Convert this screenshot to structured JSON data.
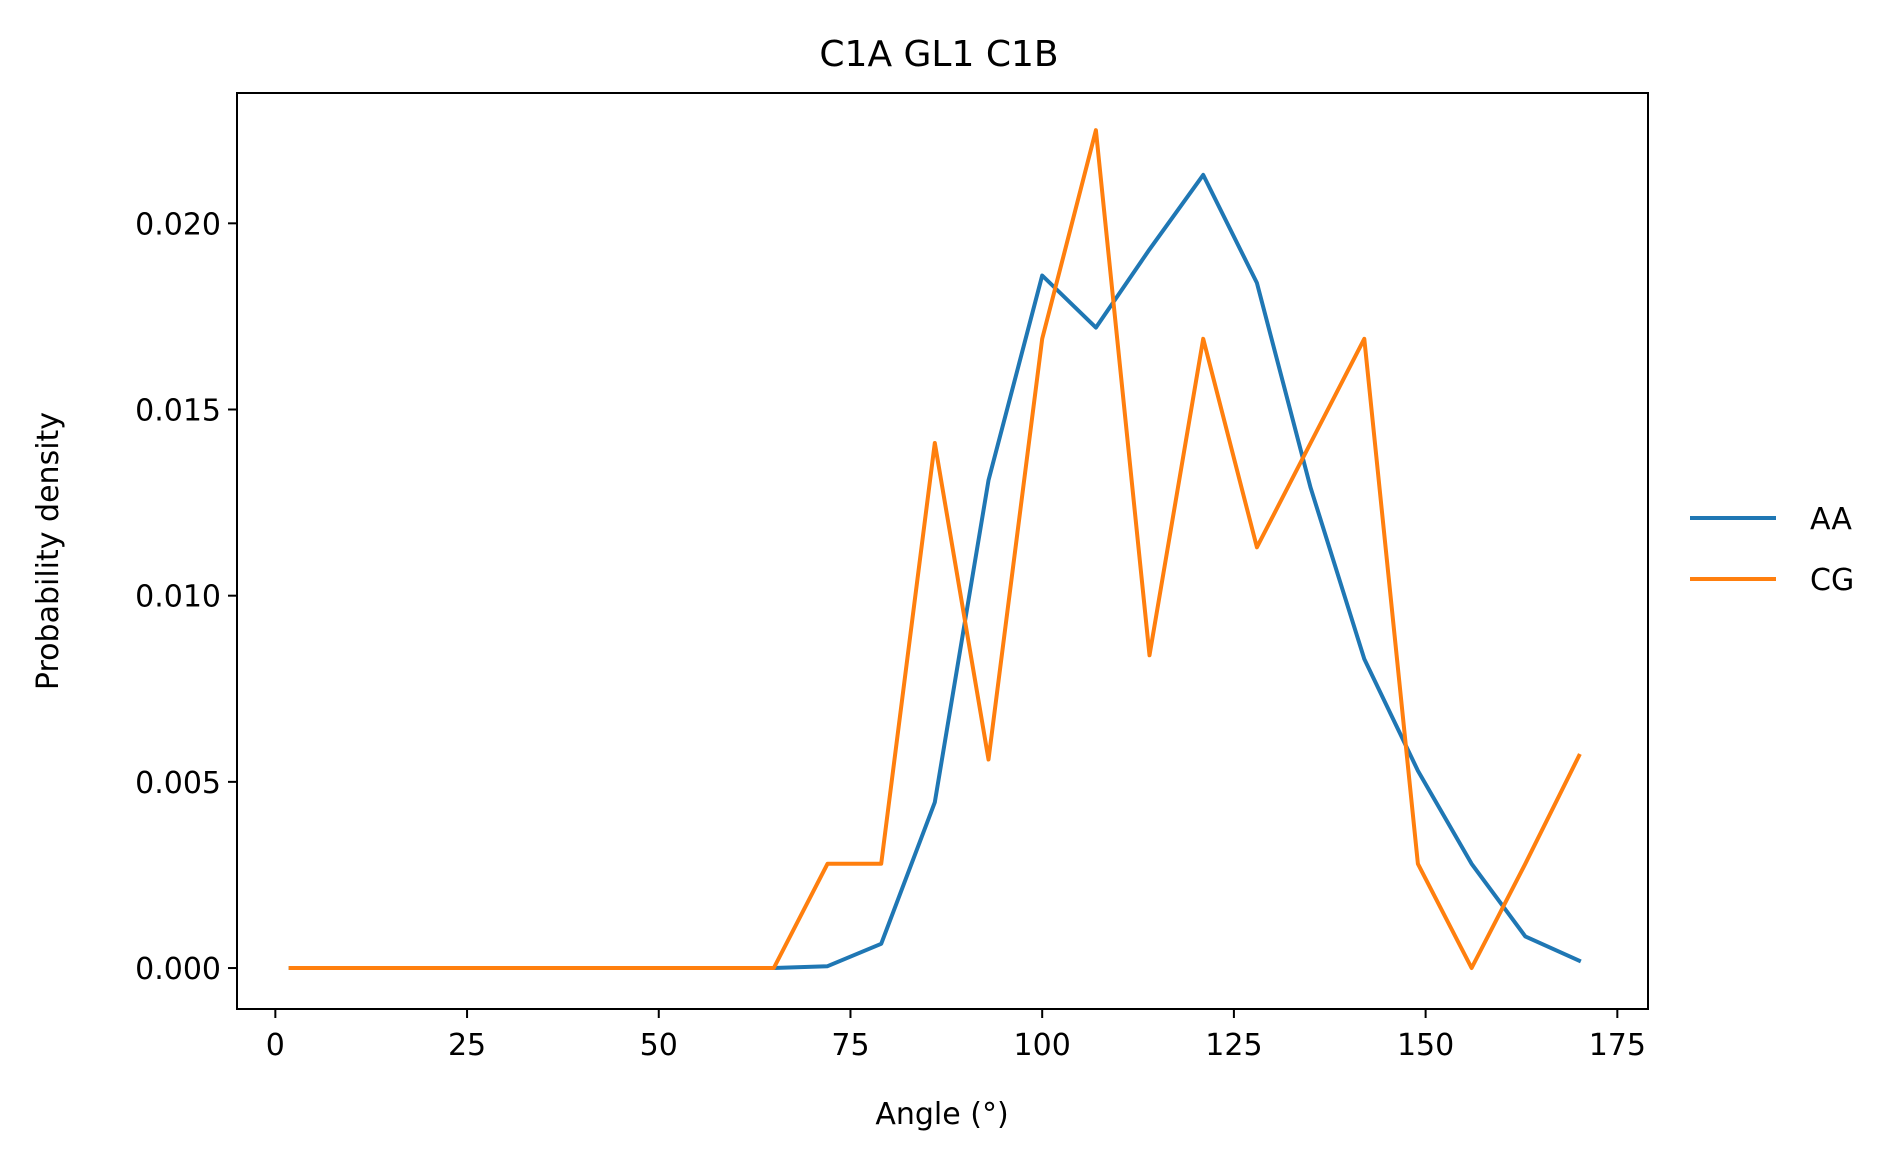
{
  "chart_data": {
    "type": "line",
    "title": "C1A GL1 C1B",
    "xlabel": "Angle (°)",
    "ylabel": "Probability density",
    "xlim": [
      -5,
      179
    ],
    "ylim": [
      -0.0011,
      0.0235
    ],
    "x_ticks": [
      0,
      25,
      50,
      75,
      100,
      125,
      150,
      175
    ],
    "x_tick_labels": [
      "0",
      "25",
      "50",
      "75",
      "100",
      "125",
      "150",
      "175"
    ],
    "y_ticks": [
      0.0,
      0.005,
      0.01,
      0.015,
      0.02
    ],
    "y_tick_labels": [
      "0.000",
      "0.005",
      "0.010",
      "0.015",
      "0.020"
    ],
    "grid": false,
    "legend_position": "outside-right",
    "series": [
      {
        "name": "AA",
        "color": "#1f77b4",
        "x": [
          2,
          9,
          16,
          23,
          30,
          37,
          44,
          51,
          58,
          65,
          72,
          79,
          86,
          93,
          100,
          107,
          114,
          121,
          128,
          135,
          142,
          149,
          156,
          163,
          170
        ],
        "y": [
          0,
          0,
          0,
          0,
          0,
          0,
          0,
          0,
          0,
          0,
          5e-05,
          0.00065,
          0.00445,
          0.0131,
          0.0186,
          0.0172,
          0.0193,
          0.0213,
          0.0184,
          0.0129,
          0.0083,
          0.0053,
          0.0028,
          0.00085,
          0.0002
        ]
      },
      {
        "name": "CG",
        "color": "#ff7f0e",
        "x": [
          2,
          9,
          16,
          23,
          30,
          37,
          44,
          51,
          58,
          65,
          72,
          79,
          86,
          93,
          100,
          107,
          114,
          121,
          128,
          135,
          142,
          149,
          156,
          163,
          170
        ],
        "y": [
          0,
          0,
          0,
          0,
          0,
          0,
          0,
          0,
          0,
          0,
          0.0028,
          0.0028,
          0.0141,
          0.0056,
          0.0169,
          0.0225,
          0.0084,
          0.0169,
          0.0113,
          0.0141,
          0.0169,
          0.0028,
          0,
          0.0028,
          0.0057
        ]
      }
    ]
  }
}
